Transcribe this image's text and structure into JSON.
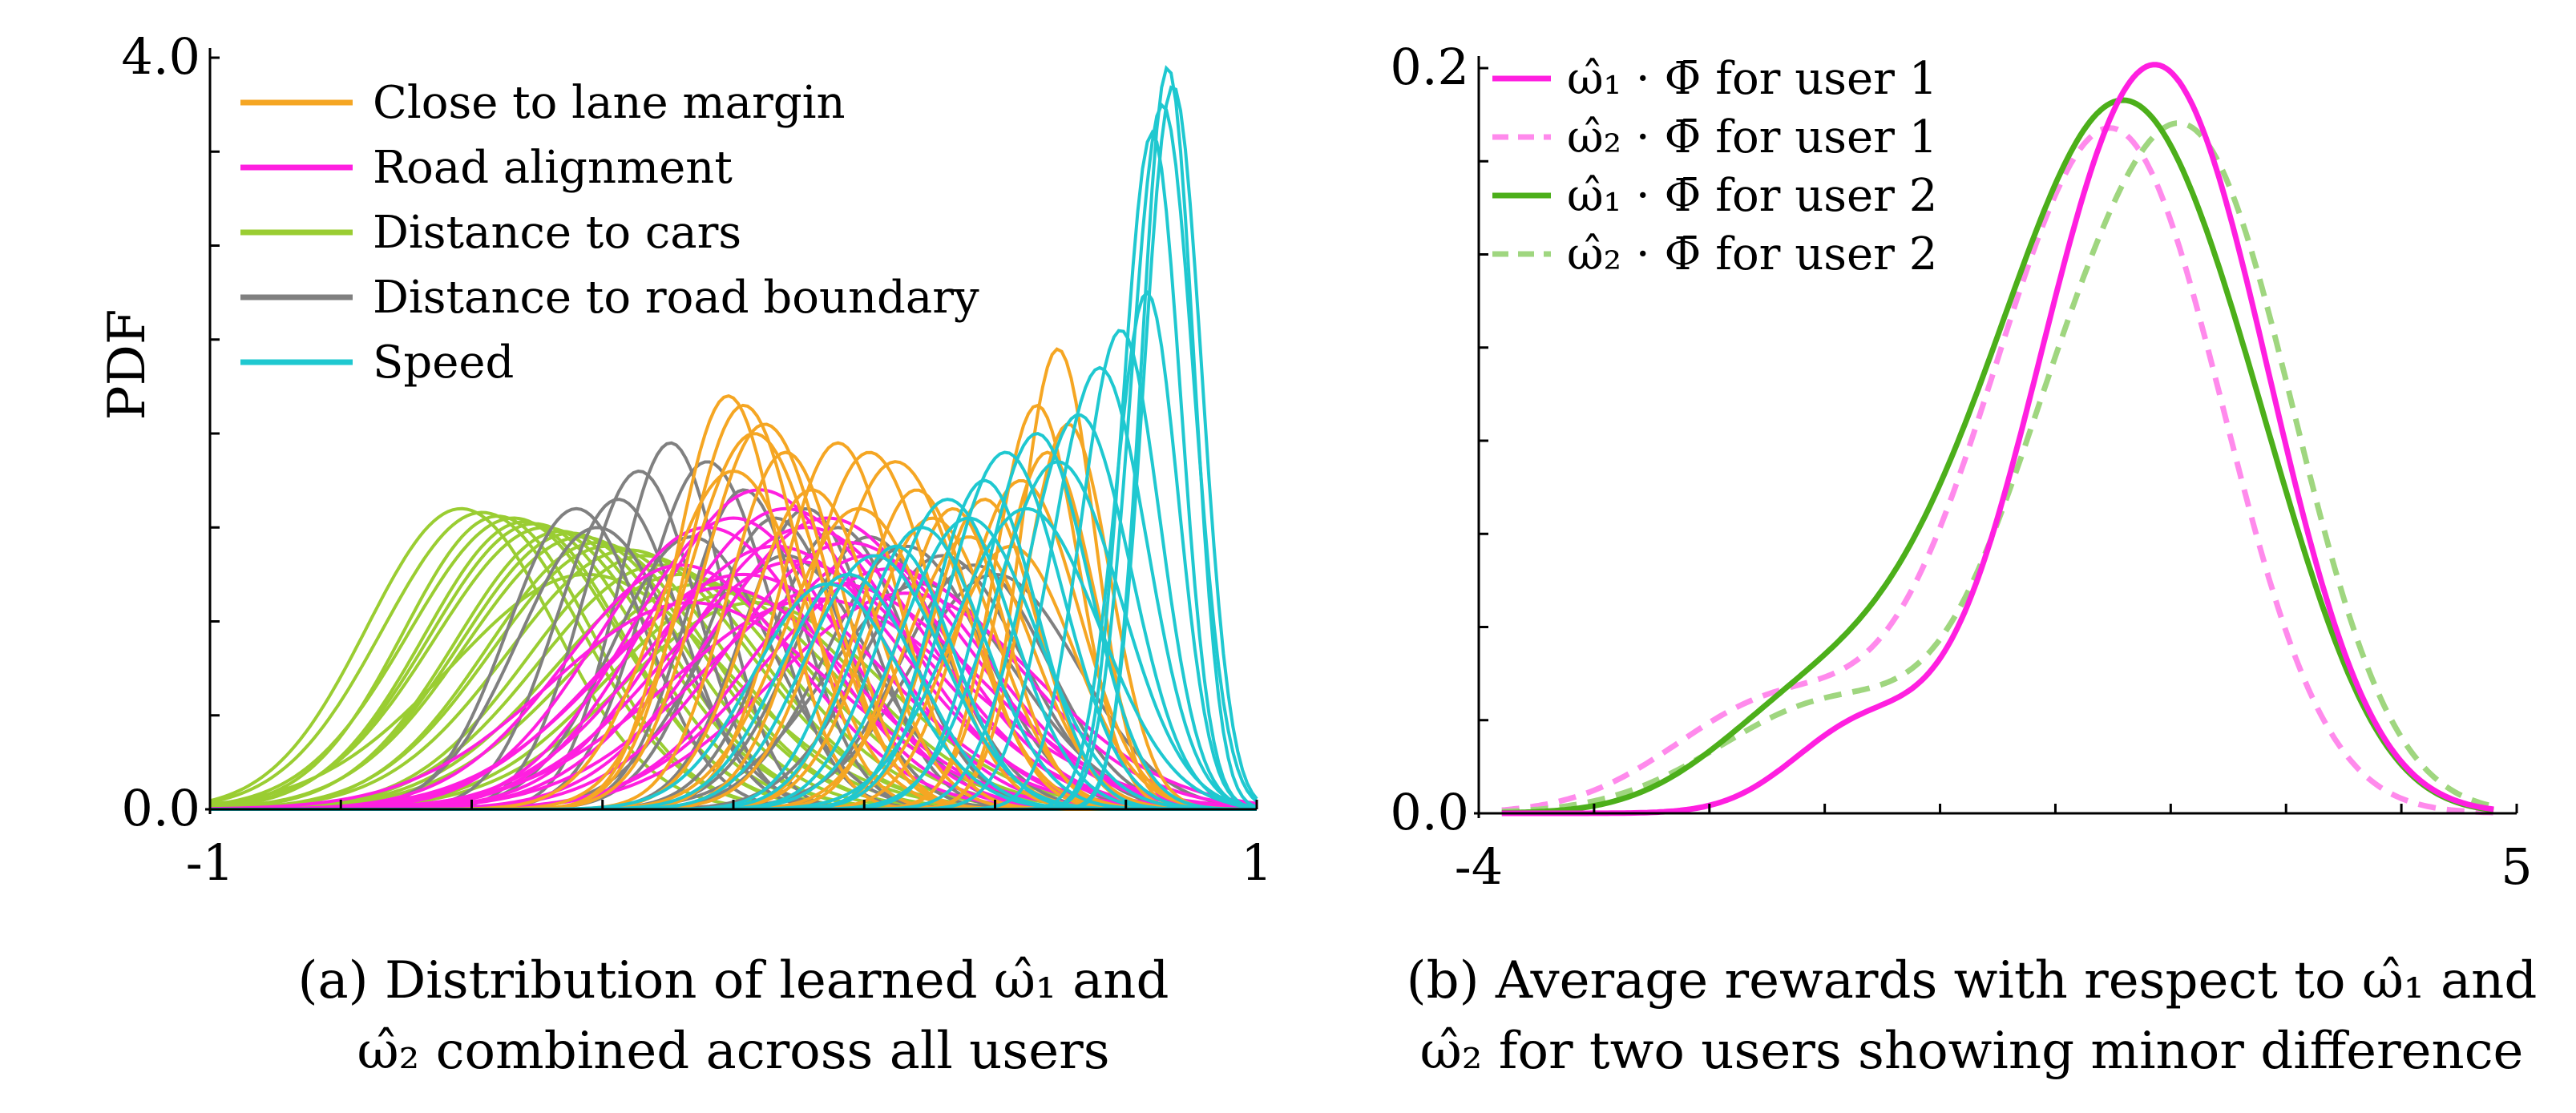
{
  "chart_data": [
    {
      "type": "line",
      "panel": "a",
      "ylabel": "PDF",
      "xlim": [
        -1,
        1
      ],
      "ylim": [
        0,
        4.0
      ],
      "x_tick_labels": [
        {
          "value": -1,
          "label": "-1"
        },
        {
          "value": 1,
          "label": "1"
        }
      ],
      "y_tick_labels": [
        {
          "value": 0,
          "label": "0.0"
        },
        {
          "value": 4.0,
          "label": "4.0"
        }
      ],
      "legend_position": "top-left",
      "caption_line1": "(a) Distribution of learned ω̂₁ and",
      "caption_line2": "ω̂₂ combined across all users",
      "series": [
        {
          "name": "Close to lane margin",
          "color": "#F5A623",
          "curves": [
            [
              0.02,
              0.11,
              2.15
            ],
            [
              0.06,
              0.12,
              2.05
            ],
            [
              -0.01,
              0.1,
              2.2
            ],
            [
              0.1,
              0.11,
              1.9
            ],
            [
              0.04,
              0.13,
              2.0
            ],
            [
              0.15,
              0.12,
              1.7
            ],
            [
              0.0,
              0.14,
              1.8
            ],
            [
              0.2,
              0.11,
              1.95
            ],
            [
              0.26,
              0.12,
              1.9
            ],
            [
              0.31,
              0.13,
              1.85
            ],
            [
              0.35,
              0.11,
              1.7
            ],
            [
              0.42,
              0.1,
              1.6
            ],
            [
              0.45,
              0.12,
              1.45
            ],
            [
              0.48,
              0.1,
              1.65
            ],
            [
              0.53,
              0.12,
              1.4
            ],
            [
              0.58,
              0.08,
              2.15
            ],
            [
              0.62,
              0.07,
              2.45
            ],
            [
              0.64,
              0.08,
              2.05
            ],
            [
              0.6,
              0.09,
              1.9
            ],
            [
              0.55,
              0.11,
              1.75
            ],
            [
              0.38,
              0.12,
              1.55
            ],
            [
              0.24,
              0.14,
              1.6
            ]
          ]
        },
        {
          "name": "Road alignment",
          "color": "#FF1FE0",
          "curves": [
            [
              0.05,
              0.21,
              1.7
            ],
            [
              0.1,
              0.22,
              1.6
            ],
            [
              0.0,
              0.2,
              1.55
            ],
            [
              0.18,
              0.22,
              1.55
            ],
            [
              0.14,
              0.23,
              1.5
            ],
            [
              -0.05,
              0.21,
              1.5
            ],
            [
              0.22,
              0.23,
              1.42
            ],
            [
              0.08,
              0.24,
              1.4
            ],
            [
              0.26,
              0.22,
              1.35
            ],
            [
              0.12,
              0.25,
              1.32
            ],
            [
              -0.1,
              0.22,
              1.3
            ],
            [
              0.3,
              0.24,
              1.28
            ],
            [
              0.02,
              0.26,
              1.25
            ],
            [
              0.2,
              0.26,
              1.2
            ],
            [
              -0.02,
              0.24,
              1.18
            ],
            [
              0.33,
              0.25,
              1.15
            ],
            [
              0.16,
              0.28,
              1.12
            ],
            [
              -0.08,
              0.27,
              1.1
            ]
          ]
        },
        {
          "name": "Distance to cars",
          "color": "#9ACD32",
          "curves": [
            [
              -0.52,
              0.18,
              1.6
            ],
            [
              -0.48,
              0.19,
              1.58
            ],
            [
              -0.45,
              0.18,
              1.56
            ],
            [
              -0.42,
              0.2,
              1.55
            ],
            [
              -0.4,
              0.19,
              1.53
            ],
            [
              -0.38,
              0.2,
              1.52
            ],
            [
              -0.36,
              0.21,
              1.5
            ],
            [
              -0.33,
              0.2,
              1.48
            ],
            [
              -0.31,
              0.21,
              1.47
            ],
            [
              -0.29,
              0.22,
              1.45
            ],
            [
              -0.26,
              0.21,
              1.42
            ],
            [
              -0.24,
              0.22,
              1.4
            ],
            [
              -0.2,
              0.23,
              1.38
            ],
            [
              -0.17,
              0.22,
              1.35
            ],
            [
              -0.14,
              0.23,
              1.3
            ],
            [
              -0.1,
              0.24,
              1.25
            ],
            [
              -0.06,
              0.25,
              1.2
            ],
            [
              -0.28,
              0.26,
              1.25
            ],
            [
              0.0,
              0.24,
              1.15
            ],
            [
              0.04,
              0.25,
              1.1
            ]
          ]
        },
        {
          "name": "Distance to road boundary",
          "color": "#808080",
          "curves": [
            [
              -0.12,
              0.1,
              1.95
            ],
            [
              -0.05,
              0.12,
              1.85
            ],
            [
              -0.18,
              0.11,
              1.8
            ],
            [
              0.02,
              0.11,
              1.7
            ],
            [
              -0.22,
              0.12,
              1.65
            ],
            [
              0.08,
              0.13,
              1.55
            ],
            [
              -0.3,
              0.13,
              1.6
            ],
            [
              0.14,
              0.12,
              1.6
            ],
            [
              0.2,
              0.13,
              1.5
            ],
            [
              0.26,
              0.14,
              1.45
            ],
            [
              0.33,
              0.15,
              1.4
            ],
            [
              0.4,
              0.15,
              1.35
            ],
            [
              0.46,
              0.14,
              1.3
            ],
            [
              0.5,
              0.16,
              1.25
            ],
            [
              -0.08,
              0.15,
              1.45
            ],
            [
              0.1,
              0.16,
              1.35
            ],
            [
              0.36,
              0.18,
              1.2
            ],
            [
              -0.26,
              0.15,
              1.5
            ]
          ]
        },
        {
          "name": "Speed",
          "color": "#1FC8D0",
          "curves": [
            [
              0.83,
              0.05,
              3.95
            ],
            [
              0.84,
              0.055,
              3.85
            ],
            [
              0.82,
              0.06,
              3.75
            ],
            [
              0.8,
              0.055,
              3.6
            ],
            [
              0.79,
              0.06,
              2.75
            ],
            [
              0.74,
              0.075,
              2.55
            ],
            [
              0.7,
              0.09,
              2.35
            ],
            [
              0.58,
              0.1,
              2.0
            ],
            [
              0.52,
              0.11,
              1.9
            ],
            [
              0.48,
              0.1,
              1.75
            ],
            [
              0.41,
              0.12,
              1.65
            ],
            [
              0.36,
              0.12,
              1.5
            ],
            [
              0.31,
              0.11,
              1.4
            ],
            [
              0.27,
              0.13,
              1.35
            ],
            [
              0.22,
              0.13,
              1.25
            ],
            [
              0.18,
              0.14,
              1.2
            ],
            [
              0.45,
              0.13,
              1.55
            ],
            [
              0.62,
              0.12,
              1.85
            ],
            [
              0.66,
              0.1,
              2.1
            ],
            [
              0.56,
              0.14,
              1.6
            ]
          ]
        }
      ]
    },
    {
      "type": "line",
      "panel": "b",
      "xlim": [
        -4,
        5
      ],
      "ylim": [
        0,
        0.2
      ],
      "x_tick_labels": [
        {
          "value": -4,
          "label": "-4"
        },
        {
          "value": 5,
          "label": "5"
        }
      ],
      "y_tick_labels": [
        {
          "value": 0,
          "label": "0.0"
        },
        {
          "value": 0.2,
          "label": "0.2"
        }
      ],
      "legend_position": "top-left",
      "caption_line1": "(b) Average rewards with respect to ω̂₁ and",
      "caption_line2": "ω̂₂ for two users showing minor difference",
      "series": [
        {
          "name": "ω̂₁ · Φ̄ for user 1",
          "color": "#FF1FE0",
          "dash": "solid",
          "components": [
            [
              2.1,
              0.85,
              0.168
            ],
            [
              1.1,
              0.75,
              0.066
            ],
            [
              -0.7,
              0.6,
              0.022
            ]
          ]
        },
        {
          "name": "ω̂₂ · Φ̄ for user 1",
          "color": "#FF8AEC",
          "dash": "dashed",
          "components": [
            [
              1.7,
              0.85,
              0.155
            ],
            [
              0.6,
              0.8,
              0.062
            ],
            [
              -1.4,
              0.9,
              0.03
            ]
          ]
        },
        {
          "name": "ω̂₁ · Φ̄ for user 2",
          "color": "#4CAF1A",
          "dash": "solid",
          "components": [
            [
              1.7,
              0.85,
              0.15
            ],
            [
              0.5,
              0.9,
              0.07
            ],
            [
              2.8,
              0.7,
              0.04
            ],
            [
              -1.2,
              0.8,
              0.025
            ]
          ]
        },
        {
          "name": "ω̂₂ · Φ̄ for user 2",
          "color": "#9FD67F",
          "dash": "dashed",
          "components": [
            [
              2.25,
              0.85,
              0.17
            ],
            [
              1.0,
              0.7,
              0.06
            ],
            [
              -0.9,
              1.0,
              0.03
            ]
          ]
        }
      ]
    }
  ]
}
